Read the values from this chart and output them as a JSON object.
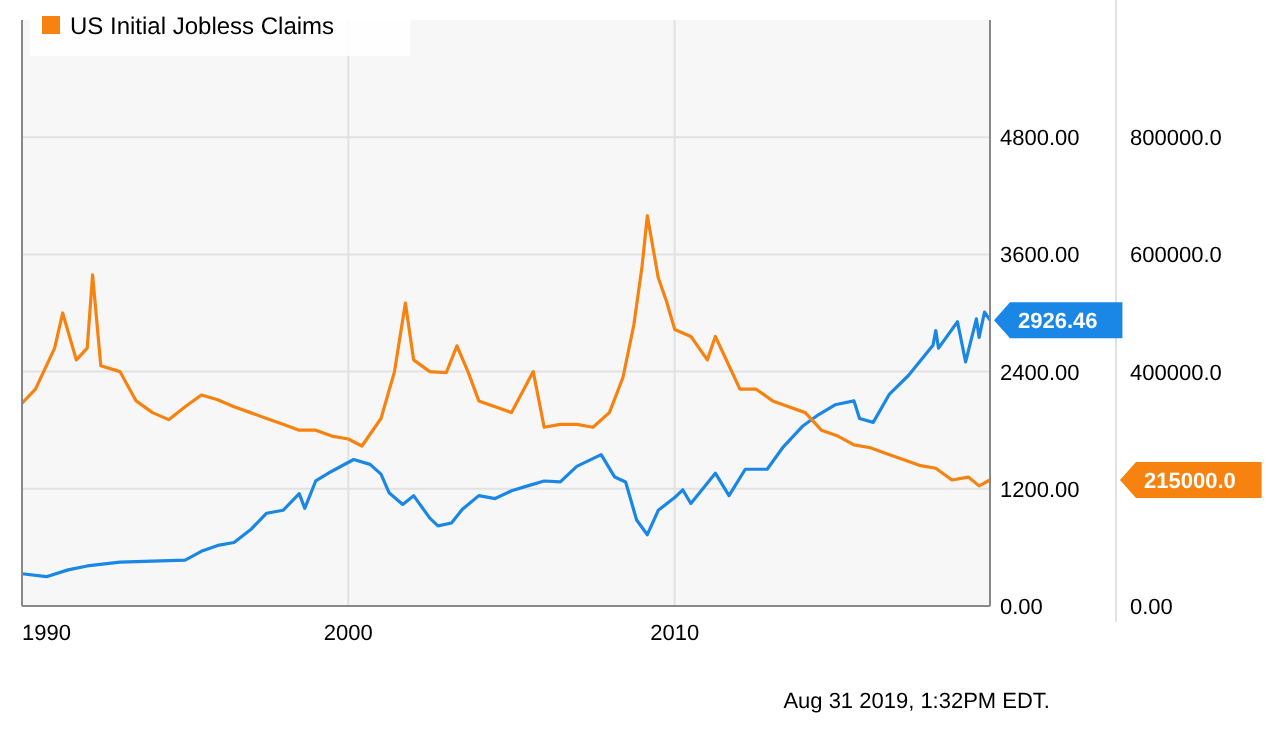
{
  "chart_data": {
    "type": "line",
    "legend": "top left",
    "grid": true,
    "xlim": [
      "1990-01-01",
      "2019-08-31"
    ],
    "xticks": [
      {
        "value": "1990-01-01",
        "label": "1990"
      },
      {
        "value": "2000-01-01",
        "label": "2000"
      },
      {
        "value": "2010-01-01",
        "label": "2010"
      }
    ],
    "ylim": [
      0,
      6000
    ],
    "yticks": [
      {
        "value": 0,
        "label": "0.00"
      },
      {
        "value": 1200,
        "label": "1200.00"
      },
      {
        "value": 2400,
        "label": "2400.00"
      },
      {
        "value": 3600,
        "label": "3600.00"
      },
      {
        "value": 4800,
        "label": "4800.00"
      }
    ],
    "y2lim": [
      0,
      1000000
    ],
    "y2ticks": [
      {
        "value": 0,
        "label": "0.00"
      },
      {
        "value": 400000,
        "label": "400000.0"
      },
      {
        "value": 600000,
        "label": "600000.0"
      },
      {
        "value": 800000,
        "label": "800000.0"
      }
    ],
    "series": [
      {
        "color": "#1a87e6",
        "x": [
          "1990-01",
          "1990-10",
          "1991-06",
          "1992-01",
          "1993-01",
          "1994-01",
          "1995-01",
          "1995-07",
          "1996-01",
          "1996-07",
          "1997-01",
          "1997-07",
          "1998-01",
          "1998-07",
          "1998-09",
          "1999-01",
          "1999-07",
          "2000-03",
          "2000-09",
          "2001-01",
          "2001-04",
          "2001-09",
          "2002-01",
          "2002-07",
          "2002-10",
          "2003-03",
          "2003-07",
          "2004-01",
          "2004-07",
          "2005-01",
          "2005-07",
          "2006-01",
          "2006-07",
          "2007-01",
          "2007-10",
          "2008-03",
          "2008-07",
          "2008-11",
          "2009-03",
          "2009-07",
          "2010-01",
          "2010-04",
          "2010-07",
          "2011-04",
          "2011-09",
          "2012-03",
          "2012-11",
          "2013-05",
          "2013-12",
          "2014-06",
          "2014-12",
          "2015-07",
          "2015-09",
          "2016-02",
          "2016-08",
          "2017-03",
          "2017-12",
          "2018-01",
          "2018-02",
          "2018-09",
          "2018-12",
          "2019-04",
          "2019-05",
          "2019-07",
          "2019-08-31"
        ],
        "values": [
          330,
          300,
          370,
          410,
          450,
          460,
          470,
          560,
          620,
          650,
          780,
          950,
          980,
          1150,
          1000,
          1280,
          1380,
          1500,
          1450,
          1350,
          1160,
          1040,
          1130,
          900,
          820,
          850,
          990,
          1130,
          1100,
          1180,
          1230,
          1280,
          1270,
          1430,
          1550,
          1320,
          1270,
          880,
          730,
          980,
          1110,
          1190,
          1050,
          1360,
          1130,
          1400,
          1400,
          1630,
          1840,
          1960,
          2060,
          2100,
          1920,
          1880,
          2170,
          2360,
          2670,
          2820,
          2640,
          2910,
          2500,
          2940,
          2750,
          3010,
          2926.46
        ]
      },
      {
        "name": "US Initial Jobless Claims",
        "color": "#f7820f",
        "axis": "y2",
        "x": [
          "1990-01",
          "1990-06",
          "1991-01",
          "1991-04",
          "1991-09",
          "1992-01",
          "1992-03",
          "1992-06",
          "1993-01",
          "1993-07",
          "1994-01",
          "1994-07",
          "1995-01",
          "1995-07",
          "1996-01",
          "1996-07",
          "1997-01",
          "1997-07",
          "1998-01",
          "1998-07",
          "1999-01",
          "1999-07",
          "2000-01",
          "2000-06",
          "2001-01",
          "2001-06",
          "2001-10",
          "2002-01",
          "2002-07",
          "2003-01",
          "2003-05",
          "2003-09",
          "2004-01",
          "2004-07",
          "2005-01",
          "2005-09",
          "2006-01",
          "2006-07",
          "2007-01",
          "2007-07",
          "2008-01",
          "2008-06",
          "2008-10",
          "2009-01",
          "2009-03",
          "2009-07",
          "2009-10",
          "2010-01",
          "2010-07",
          "2011-01",
          "2011-04",
          "2011-09",
          "2012-01",
          "2012-07",
          "2013-01",
          "2013-07",
          "2014-01",
          "2014-07",
          "2015-01",
          "2015-07",
          "2016-01",
          "2016-07",
          "2017-01",
          "2017-07",
          "2018-01",
          "2018-07",
          "2019-01",
          "2019-05",
          "2019-08-31"
        ],
        "values": [
          346000,
          370000,
          440000,
          500000,
          420000,
          440000,
          565000,
          410000,
          400000,
          350000,
          330000,
          318000,
          340000,
          360000,
          352000,
          340000,
          330000,
          320000,
          310000,
          300000,
          300000,
          290000,
          285000,
          273000,
          320000,
          400000,
          517000,
          420000,
          400000,
          398000,
          444000,
          400000,
          350000,
          340000,
          330000,
          400000,
          305000,
          310000,
          310000,
          305000,
          330000,
          390000,
          480000,
          580000,
          666000,
          560000,
          520000,
          472000,
          460000,
          420000,
          460000,
          410000,
          370000,
          370000,
          350000,
          340000,
          330000,
          300000,
          290000,
          275000,
          270000,
          260000,
          250000,
          240000,
          235000,
          215000,
          220000,
          205000,
          215000
        ]
      }
    ],
    "annotations": [
      "2926.46",
      "215000.0",
      "Aug 31 2019, 1:32PM EDT."
    ]
  }
}
